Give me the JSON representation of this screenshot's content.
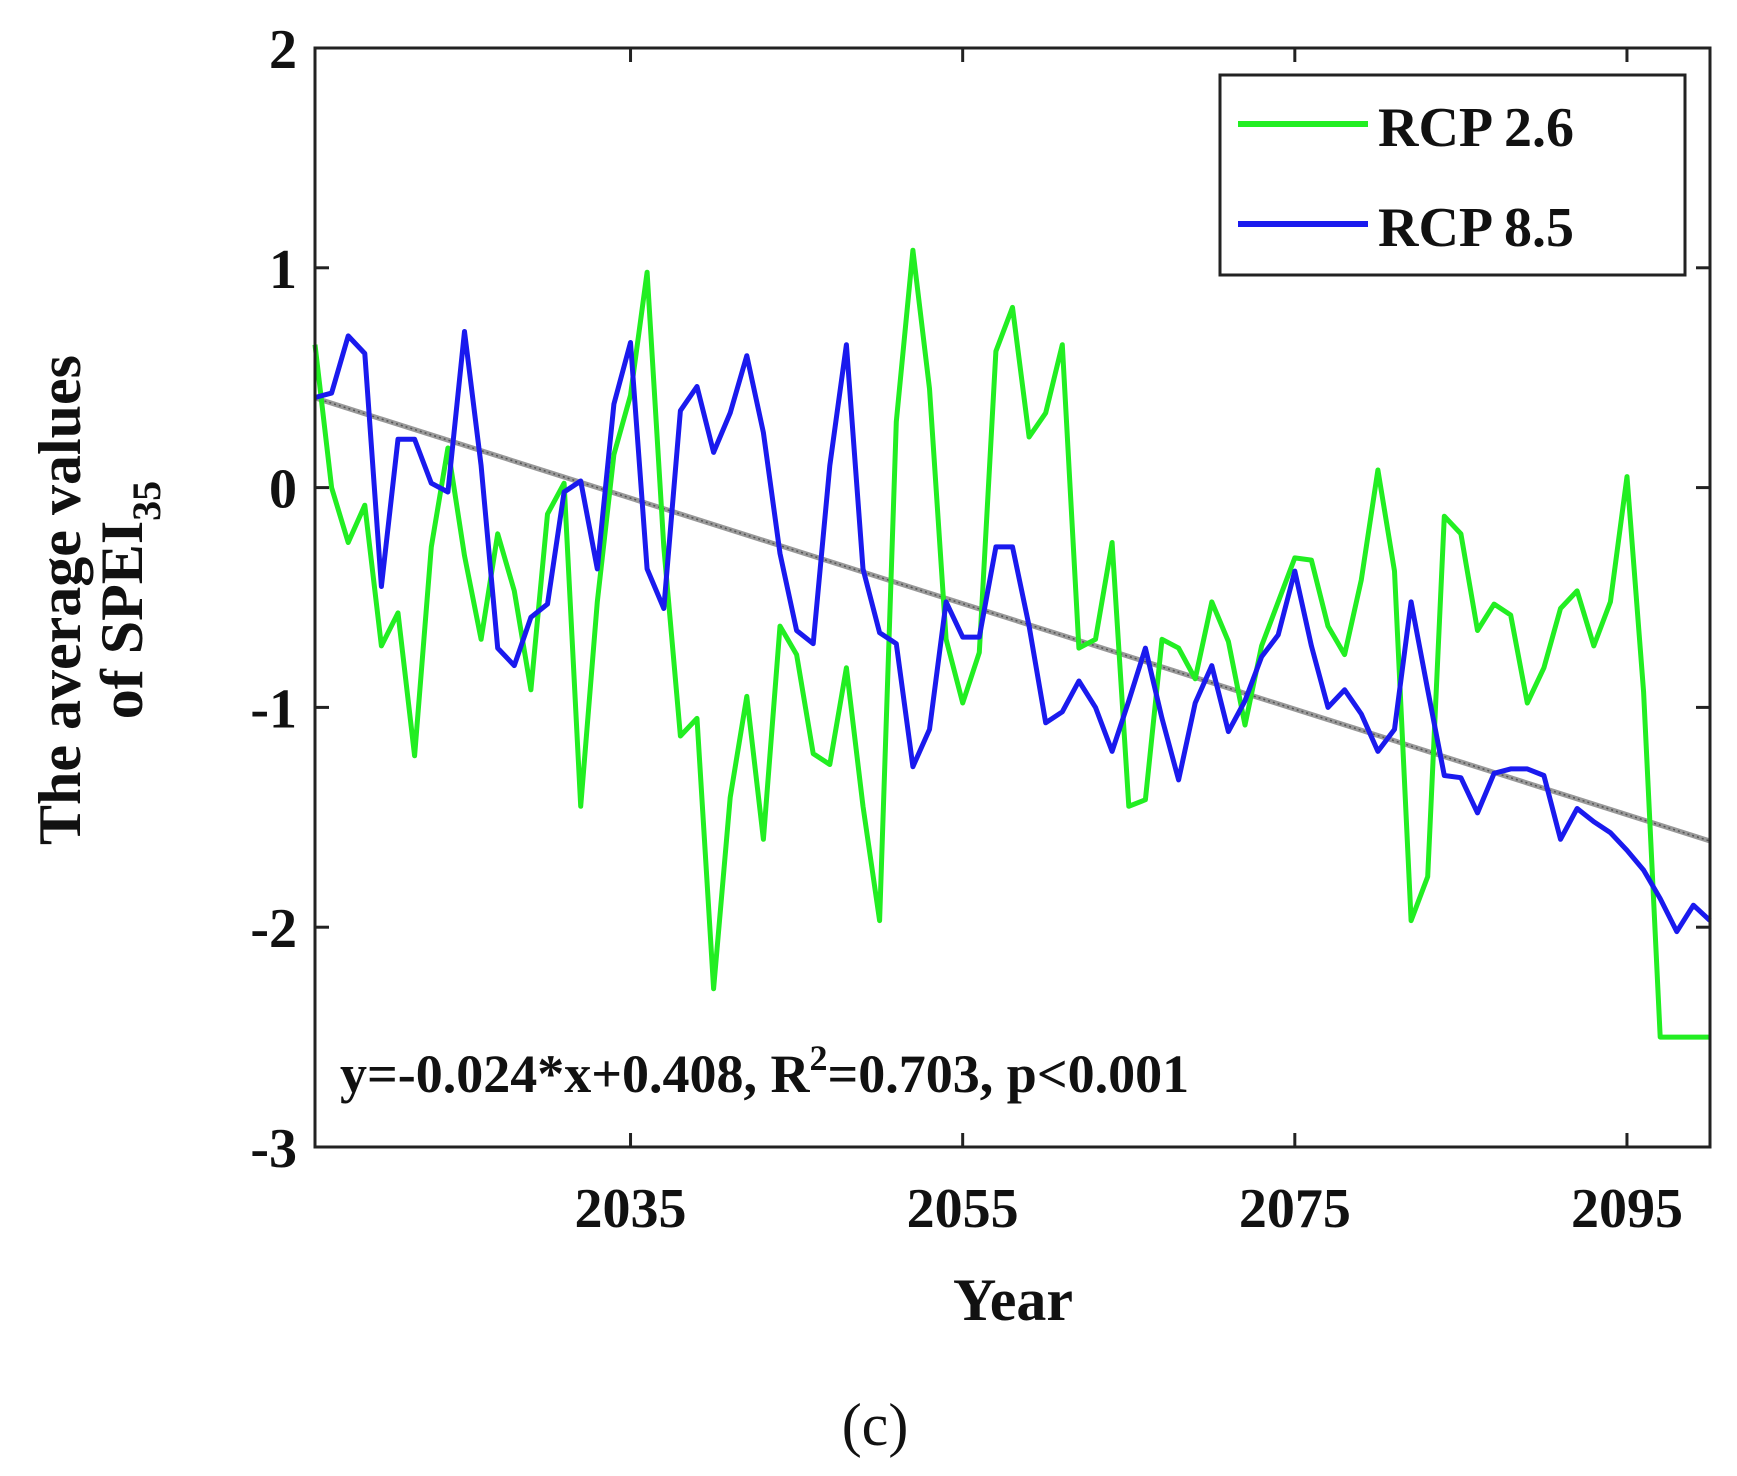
{
  "chart_data": {
    "type": "line",
    "xlabel": "Year",
    "ylabel_line1": "The average values",
    "ylabel_line2_prefix": "of SPEI",
    "ylabel_line2_subscript": "35",
    "xlim": [
      2016,
      2100
    ],
    "ylim": [
      -3,
      2
    ],
    "yticks": [
      2,
      1,
      0,
      -1,
      -2,
      -3
    ],
    "ytick_labels": [
      "2",
      "1",
      "0",
      "-1",
      "-2",
      "-3"
    ],
    "xticks": [
      2035,
      2055,
      2075,
      2095
    ],
    "xtick_labels": [
      "2035",
      "2055",
      "2075",
      "2095"
    ],
    "legend_position": "top-right",
    "series": [
      {
        "name": "RCP 2.6",
        "color": "#22ee22",
        "x": [
          2016,
          2017,
          2018,
          2019,
          2020,
          2021,
          2022,
          2023,
          2024,
          2025,
          2026,
          2027,
          2028,
          2029,
          2030,
          2031,
          2032,
          2033,
          2034,
          2035,
          2036,
          2037,
          2038,
          2039,
          2040,
          2041,
          2042,
          2043,
          2044,
          2045,
          2046,
          2047,
          2048,
          2049,
          2050,
          2051,
          2052,
          2053,
          2054,
          2055,
          2056,
          2057,
          2058,
          2059,
          2060,
          2061,
          2062,
          2063,
          2064,
          2065,
          2066,
          2067,
          2068,
          2069,
          2070,
          2071,
          2072,
          2073,
          2074,
          2075,
          2076,
          2077,
          2078,
          2079,
          2080,
          2081,
          2082,
          2083,
          2084,
          2085,
          2086,
          2087,
          2088,
          2089,
          2090,
          2091,
          2092,
          2093,
          2094,
          2095,
          2096,
          2097,
          2098,
          2099,
          2100
        ],
        "values": [
          0.65,
          0.0,
          -0.25,
          -0.08,
          -0.72,
          -0.57,
          -1.22,
          -0.27,
          0.18,
          -0.31,
          -0.69,
          -0.21,
          -0.47,
          -0.92,
          -0.12,
          0.02,
          -1.45,
          -0.52,
          0.15,
          0.42,
          0.98,
          -0.27,
          -1.13,
          -1.05,
          -2.28,
          -1.41,
          -0.95,
          -1.6,
          -0.63,
          -0.76,
          -1.21,
          -1.26,
          -0.82,
          -1.45,
          -1.97,
          0.3,
          1.08,
          0.45,
          -0.69,
          -0.98,
          -0.75,
          0.62,
          0.82,
          0.23,
          0.34,
          0.65,
          -0.73,
          -0.69,
          -0.25,
          -1.45,
          -1.42,
          -0.69,
          -0.73,
          -0.87,
          -0.52,
          -0.7,
          -1.08,
          -0.72,
          -0.52,
          -0.32,
          -0.33,
          -0.63,
          -0.76,
          -0.42,
          0.08,
          -0.38,
          -1.97,
          -1.77,
          -0.13,
          -0.21,
          -0.65,
          -0.53,
          -0.58,
          -0.98,
          -0.82,
          -0.55,
          -0.47,
          -0.72,
          -0.52,
          0.05,
          -0.93,
          -2.5,
          -2.5,
          -2.5,
          -2.5
        ]
      },
      {
        "name": "RCP 8.5",
        "color": "#1a1aee",
        "x": [
          2016,
          2017,
          2018,
          2019,
          2020,
          2021,
          2022,
          2023,
          2024,
          2025,
          2026,
          2027,
          2028,
          2029,
          2030,
          2031,
          2032,
          2033,
          2034,
          2035,
          2036,
          2037,
          2038,
          2039,
          2040,
          2041,
          2042,
          2043,
          2044,
          2045,
          2046,
          2047,
          2048,
          2049,
          2050,
          2051,
          2052,
          2053,
          2054,
          2055,
          2056,
          2057,
          2058,
          2059,
          2060,
          2061,
          2062,
          2063,
          2064,
          2065,
          2066,
          2067,
          2068,
          2069,
          2070,
          2071,
          2072,
          2073,
          2074,
          2075,
          2076,
          2077,
          2078,
          2079,
          2080,
          2081,
          2082,
          2083,
          2084,
          2085,
          2086,
          2087,
          2088,
          2089,
          2090,
          2091,
          2092,
          2093,
          2094,
          2095,
          2096,
          2097,
          2098,
          2099,
          2100
        ],
        "values": [
          0.41,
          0.43,
          0.69,
          0.61,
          -0.45,
          0.22,
          0.22,
          0.02,
          -0.02,
          0.71,
          0.1,
          -0.73,
          -0.81,
          -0.59,
          -0.53,
          -0.02,
          0.03,
          -0.37,
          0.38,
          0.66,
          -0.37,
          -0.55,
          0.35,
          0.46,
          0.16,
          0.34,
          0.6,
          0.25,
          -0.3,
          -0.65,
          -0.71,
          0.1,
          0.65,
          -0.37,
          -0.66,
          -0.71,
          -1.27,
          -1.1,
          -0.52,
          -0.68,
          -0.68,
          -0.27,
          -0.27,
          -0.63,
          -1.07,
          -1.02,
          -0.88,
          -1.0,
          -1.2,
          -0.97,
          -0.73,
          -1.05,
          -1.33,
          -0.98,
          -0.81,
          -1.11,
          -0.97,
          -0.77,
          -0.67,
          -0.38,
          -0.72,
          -1.0,
          -0.92,
          -1.03,
          -1.2,
          -1.1,
          -0.52,
          -0.92,
          -1.31,
          -1.32,
          -1.48,
          -1.3,
          -1.28,
          -1.28,
          -1.31,
          -1.6,
          -1.46,
          -1.52,
          -1.57,
          -1.65,
          -1.74,
          -1.87,
          -2.02,
          -1.9,
          -1.97
        ]
      }
    ],
    "trendline": {
      "color": "#999999",
      "slope": -0.024,
      "intercept": 0.408,
      "x_start": 2016,
      "x_end": 2100
    },
    "annotation": {
      "prefix": "y=-0.024*x+0.408, R",
      "superscript": "2",
      "suffix": "=0.703, p<0.001"
    },
    "panel_label": "(c)"
  }
}
